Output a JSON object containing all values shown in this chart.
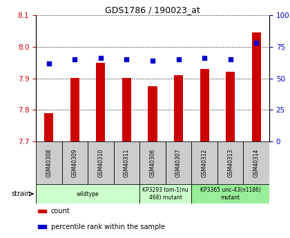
{
  "title": "GDS1786 / 190023_at",
  "samples": [
    "GSM40308",
    "GSM40309",
    "GSM40310",
    "GSM40311",
    "GSM40306",
    "GSM40307",
    "GSM40312",
    "GSM40313",
    "GSM40314"
  ],
  "count_values": [
    7.79,
    7.9,
    7.95,
    7.9,
    7.875,
    7.91,
    7.93,
    7.92,
    8.045
  ],
  "percentile_values": [
    62,
    65,
    66,
    65,
    64,
    65,
    66,
    65,
    78
  ],
  "ylim_left": [
    7.7,
    8.1
  ],
  "ylim_right": [
    0,
    100
  ],
  "yticks_left": [
    7.7,
    7.8,
    7.9,
    8.0,
    8.1
  ],
  "yticks_right": [
    0,
    25,
    50,
    75,
    100
  ],
  "bar_color": "#cc0000",
  "dot_color": "#0000cc",
  "bar_bottom": 7.7,
  "grid_color": "#000000",
  "group_info": [
    {
      "start": 0,
      "end": 4,
      "label": "wildtype",
      "color": "#ccffcc"
    },
    {
      "start": 4,
      "end": 6,
      "label": "KP3293 tom-1(nu\n468) mutant",
      "color": "#ccffcc"
    },
    {
      "start": 6,
      "end": 9,
      "label": "KP3365 unc-43(n1186)\nmutant",
      "color": "#99ee99"
    }
  ],
  "legend_items": [
    {
      "label": "count",
      "color": "#cc0000"
    },
    {
      "label": "percentile rank within the sample",
      "color": "#0000cc"
    }
  ],
  "strain_label": "strain",
  "tick_label_color_left": "#cc0000",
  "tick_label_color_right": "#0000cc",
  "sample_box_color": "#cccccc",
  "bar_width": 0.35
}
